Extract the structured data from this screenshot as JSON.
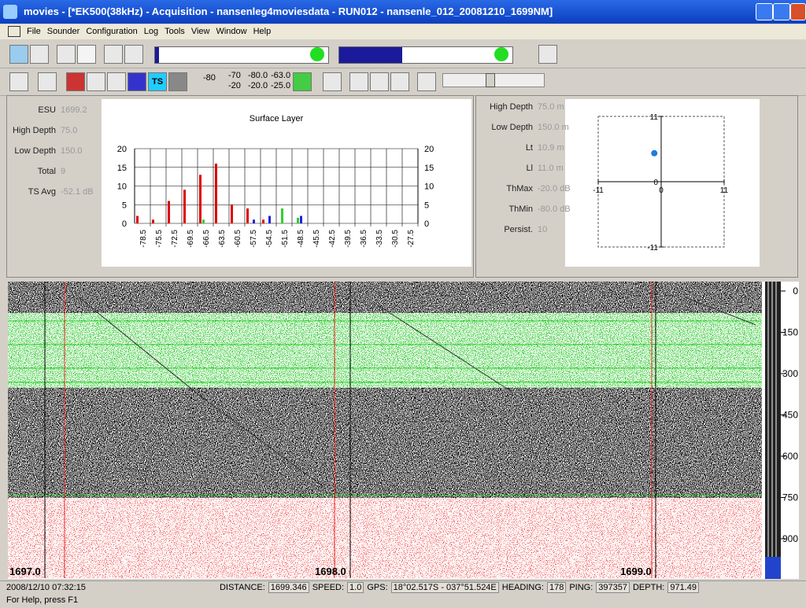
{
  "window": {
    "title": "movies - [*EK500(38kHz) - Acquisition - nansenleg4moviesdata - RUN012 - nansenle_012_20081210_1699NM]",
    "menu": [
      "File",
      "Sounder",
      "Configuration",
      "Log",
      "Tools",
      "View",
      "Window",
      "Help"
    ],
    "toolbar_texts": [
      "-80",
      "-70",
      "-80.0",
      "-63.0",
      "-20",
      "-20.0",
      "-25.0",
      "TS"
    ]
  },
  "left_panel": {
    "fields": [
      {
        "label": "ESU",
        "value": "1699.2"
      },
      {
        "label": "High Depth",
        "value": "75.0"
      },
      {
        "label": "Low Depth",
        "value": "150.0"
      },
      {
        "label": "Total",
        "value": "9"
      },
      {
        "label": "TS Avg",
        "value": "-52.1 dB"
      }
    ]
  },
  "right_panel": {
    "fields": [
      {
        "label": "High Depth",
        "value": "75.0 m"
      },
      {
        "label": "Low Depth",
        "value": "150.0 m"
      },
      {
        "label": "Lt",
        "value": "10.9 m"
      },
      {
        "label": "Ll",
        "value": "11.0 m"
      },
      {
        "label": "ThMax",
        "value": "-20.0 dB"
      },
      {
        "label": "ThMin",
        "value": "-80.0 dB"
      },
      {
        "label": "Persist.",
        "value": "10"
      }
    ]
  },
  "chart_data": [
    {
      "type": "bar",
      "title": "Surface Layer",
      "categories": [
        "-78.5",
        "-75.5",
        "-72.5",
        "-69.5",
        "-66.5",
        "-63.5",
        "-60.5",
        "-57.5",
        "-54.5",
        "-51.5",
        "-48.5",
        "-45.5",
        "-42.5",
        "-39.5",
        "-36.5",
        "-33.5",
        "-30.5",
        "-27.5"
      ],
      "series": [
        {
          "color": "#e00000",
          "values": [
            2,
            1,
            6,
            9,
            13,
            16,
            5,
            4,
            1,
            0,
            0,
            0,
            0,
            0,
            0,
            0,
            0,
            0
          ]
        },
        {
          "color": "#30d030",
          "values": [
            0,
            0,
            0,
            0,
            1,
            0,
            0,
            0,
            0,
            4,
            1.5,
            0,
            0,
            0,
            0,
            0,
            0,
            0
          ]
        },
        {
          "color": "#2020e0",
          "values": [
            0,
            0,
            0,
            0,
            0,
            0,
            0,
            1,
            2,
            0,
            2,
            0,
            0,
            0,
            0,
            0,
            0,
            0
          ]
        }
      ],
      "ylim": [
        0,
        20
      ],
      "yticks": [
        0,
        5,
        10,
        15,
        20
      ],
      "grid": true
    },
    {
      "type": "scatter",
      "x": [
        -1.2
      ],
      "values": [
        4.8
      ],
      "color": "#1e7be0",
      "xlim": [
        -11,
        11
      ],
      "ylim": [
        -11,
        11
      ],
      "xticks": [
        -11,
        0,
        11
      ],
      "yticks": [
        -11,
        0,
        11
      ]
    },
    {
      "type": "echogram",
      "yticks": [
        0,
        150,
        300,
        450,
        600,
        750,
        900
      ],
      "xticks": [
        {
          "value": 1697,
          "label": "1697.0"
        },
        {
          "value": 1698,
          "label": "1698.0"
        },
        {
          "value": 1699,
          "label": "1699.0"
        }
      ]
    }
  ],
  "status": {
    "time": "2008/12/10 07:32:15",
    "fields": [
      {
        "label": "DISTANCE:",
        "value": "1699.346"
      },
      {
        "label": "SPEED:",
        "value": "1.0"
      },
      {
        "label": "GPS:",
        "value": "18°02.517S - 037°51.524E"
      },
      {
        "label": "HEADING:",
        "value": "178"
      },
      {
        "label": "PING:",
        "value": "397357"
      },
      {
        "label": "DEPTH:",
        "value": "971.49"
      }
    ],
    "help": "For Help, press F1"
  }
}
